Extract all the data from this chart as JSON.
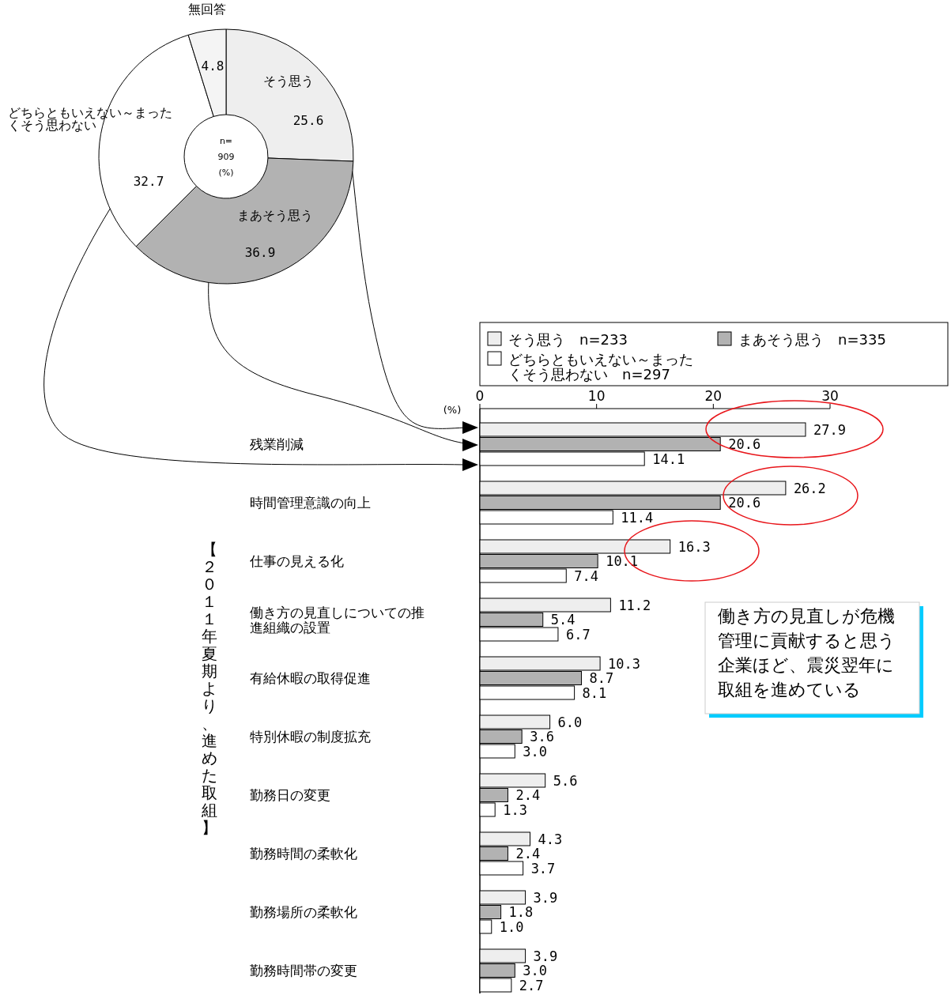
{
  "chart_data": [
    {
      "type": "donut",
      "categories": [
        "そう思う",
        "まあそう思う",
        "どちらともいえない～まったくそう思わない",
        "無回答"
      ],
      "values": [
        25.6,
        36.9,
        32.7,
        4.8
      ],
      "colors": [
        "#eeeeee",
        "#b2b2b2",
        "#ffffff",
        "#f4f4f4"
      ],
      "data_labels": true,
      "annotations": [
        "n=",
        "909",
        "(%)"
      ]
    },
    {
      "type": "bar",
      "orientation": "horizontal",
      "categories": [
        "残業削減",
        "時間管理意識の向上",
        "仕事の見える化",
        "働き方の見直しについての推進組織の設置",
        "有給休暇の取得促進",
        "特別休暇の制度拡充",
        "勤務日の変更",
        "勤務時間の柔軟化",
        "勤務場所の柔軟化",
        "勤務時間帯の変更"
      ],
      "series": [
        {
          "name": "そう思う　n=233",
          "color": "#eeeeee",
          "values": [
            27.9,
            26.2,
            16.3,
            11.2,
            10.3,
            6.0,
            5.6,
            4.3,
            3.9,
            3.9
          ],
          "value_labels": [
            "27.9",
            "26.2",
            "16.3",
            "11.2",
            "10.3",
            "6.0",
            "5.6",
            "4.3",
            "3.9",
            "3.9"
          ]
        },
        {
          "name": "まあそう思う　n=335",
          "color": "#b2b2b2",
          "values": [
            20.6,
            20.6,
            10.1,
            5.4,
            8.7,
            3.6,
            2.4,
            2.4,
            1.8,
            3.0
          ],
          "value_labels": [
            "20.6",
            "20.6",
            "10.1",
            "5.4",
            "8.7",
            "3.6",
            "2.4",
            "2.4",
            "1.8",
            "3.0"
          ]
        },
        {
          "name": "どちらともいえない～まったくそう思わない　n=297",
          "color": "#ffffff",
          "values": [
            14.1,
            11.4,
            7.4,
            6.7,
            8.1,
            3.0,
            1.3,
            3.7,
            1.0,
            2.7
          ],
          "value_labels": [
            "14.1",
            "11.4",
            "7.4",
            "6.7",
            "8.1",
            "3.0",
            "1.3",
            "3.7",
            "1.0",
            "2.7"
          ]
        }
      ],
      "xlim": [
        0,
        30
      ],
      "xticks": [
        0,
        10,
        20,
        30
      ],
      "xlabel": "(%)",
      "ylabel": "【２０１１年夏期より、進めた取組】",
      "legend": "top",
      "annotations": [
        "働き方の見直しが危機管理に貢献すると思う企業ほど、震災翌年に取組を進めている"
      ]
    }
  ]
}
